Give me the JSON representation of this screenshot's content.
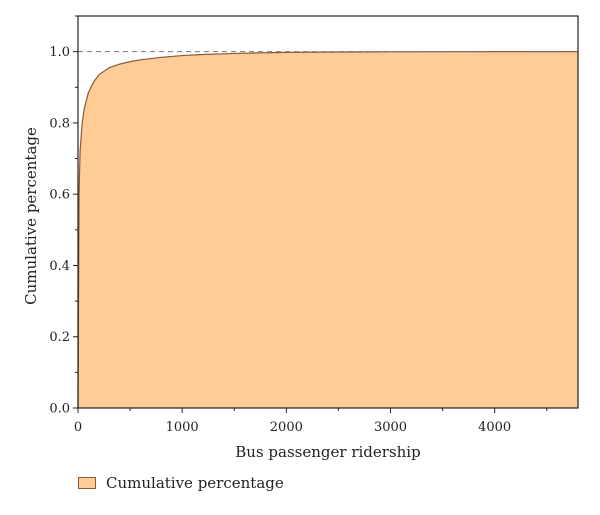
{
  "chart_data": {
    "type": "area",
    "xlabel": "Bus passenger ridership",
    "ylabel": "Cumulative percentage",
    "xlim": [
      0,
      4800
    ],
    "ylim": [
      0,
      1.1
    ],
    "xticks": [
      0,
      1000,
      2000,
      3000,
      4000
    ],
    "yticks": [
      0.0,
      0.2,
      0.4,
      0.6,
      0.8,
      1.0
    ],
    "ytick_labels": [
      "0.0",
      "0.2",
      "0.4",
      "0.6",
      "0.8",
      "1.0"
    ],
    "reference_line": {
      "y": 1.0,
      "style": "dashed"
    },
    "legend_placement": "bottom-left",
    "series": [
      {
        "name": "Cumulative percentage",
        "fill_color": "#ffcc96",
        "line_color": "#8a5a3a",
        "x": [
          0,
          10,
          20,
          40,
          60,
          100,
          150,
          200,
          300,
          400,
          500,
          600,
          800,
          1000,
          1200,
          1500,
          2000,
          2500,
          3000,
          4000,
          4800
        ],
        "y": [
          0.0,
          0.6,
          0.72,
          0.8,
          0.84,
          0.885,
          0.915,
          0.935,
          0.955,
          0.965,
          0.972,
          0.977,
          0.984,
          0.989,
          0.992,
          0.995,
          0.998,
          0.999,
          0.9995,
          1.0,
          1.0
        ]
      }
    ]
  },
  "legend": {
    "label": "Cumulative percentage"
  }
}
